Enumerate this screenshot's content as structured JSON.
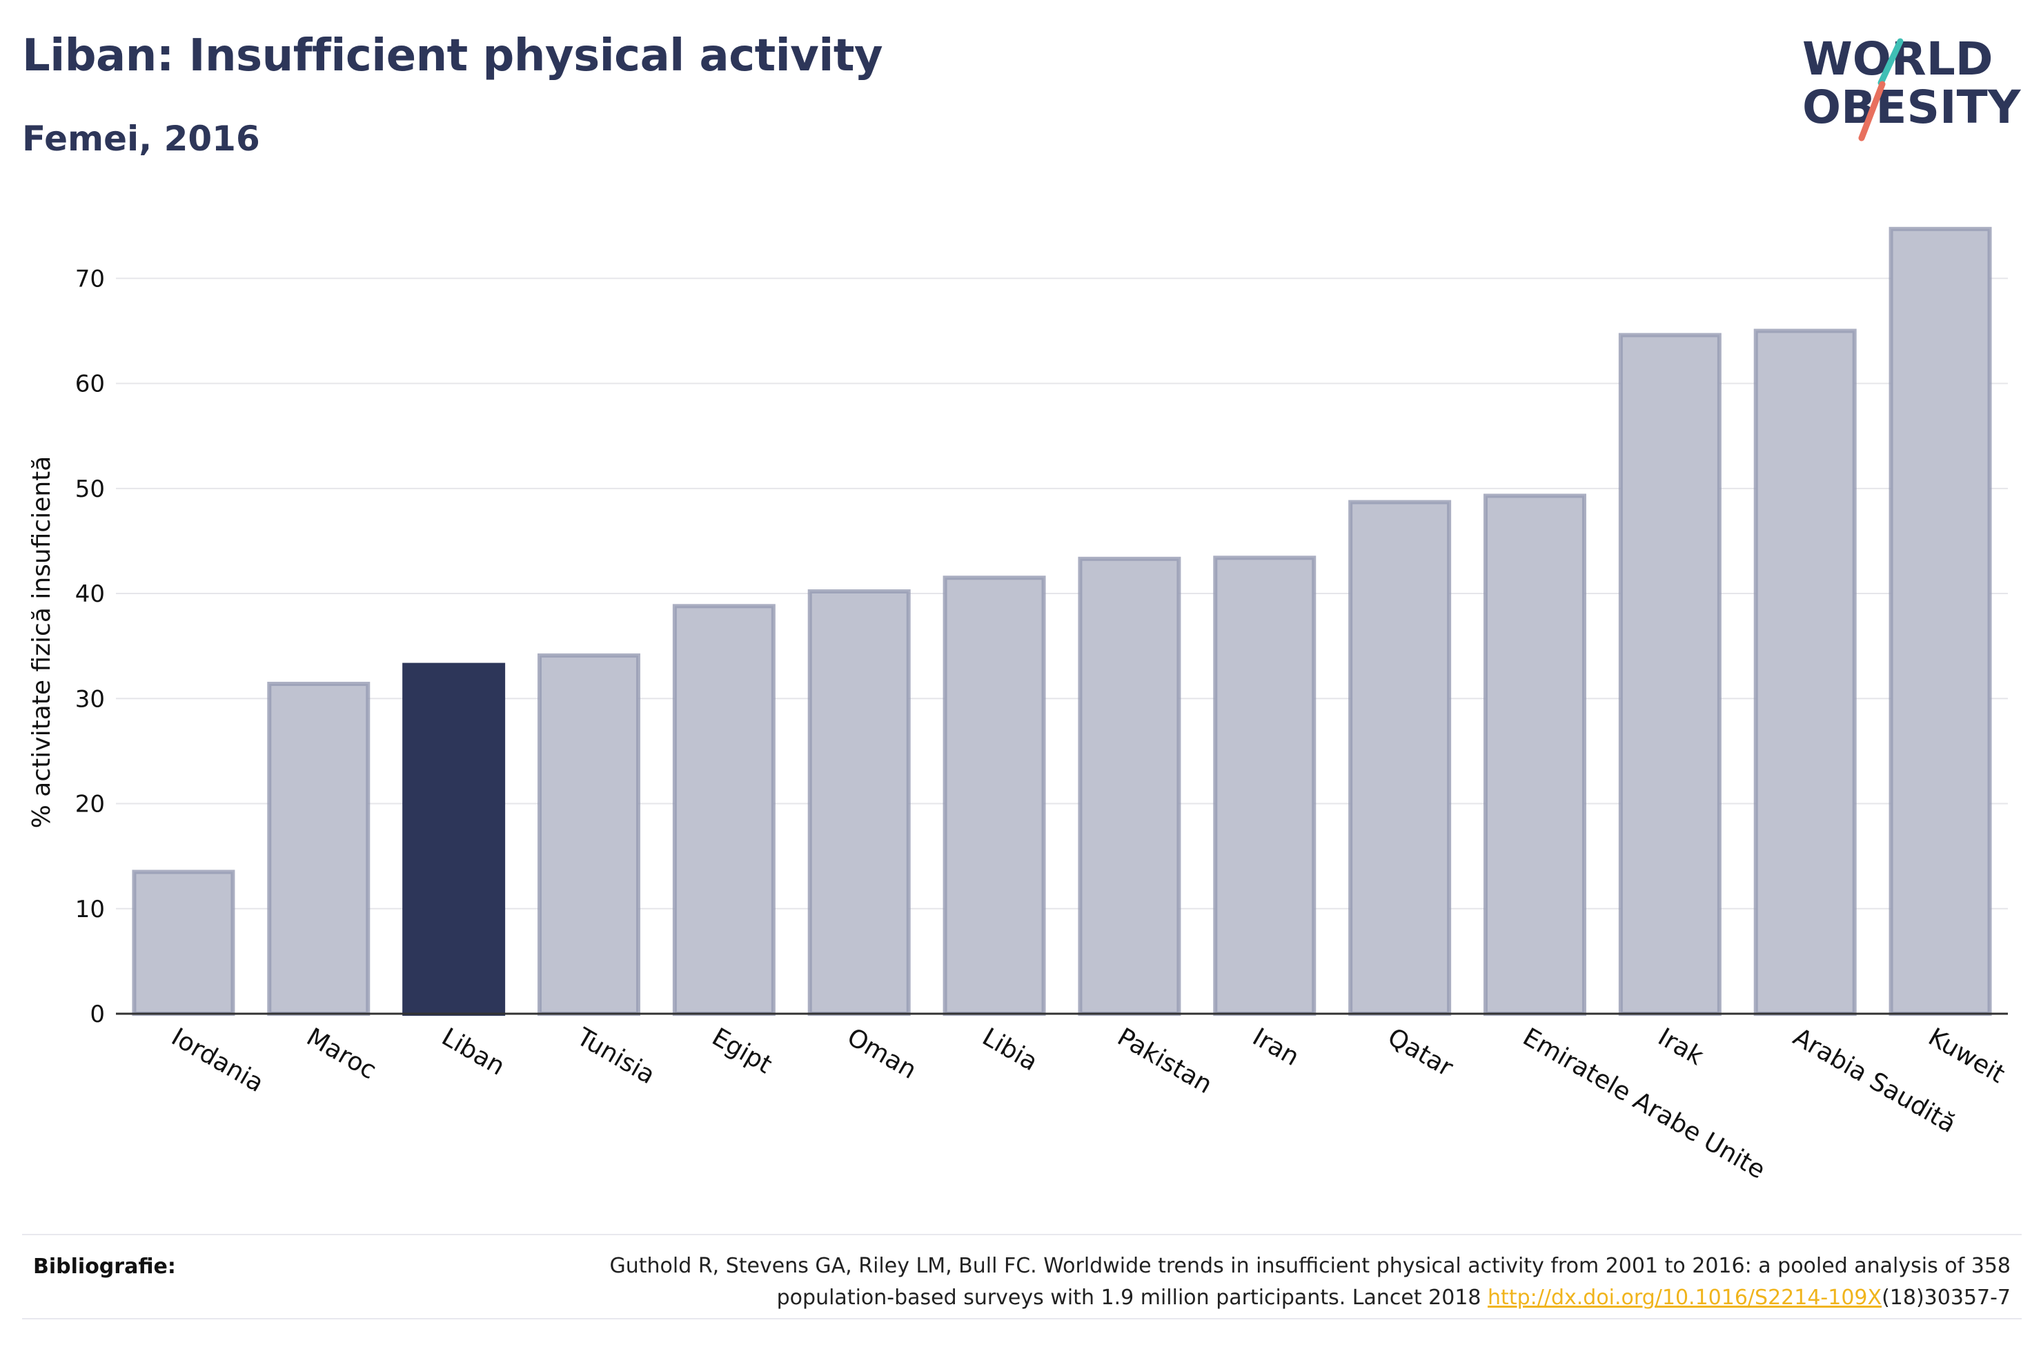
{
  "header": {
    "title": "Liban: Insufficient physical activity",
    "subtitle": "Femei, 2016"
  },
  "logo": {
    "line1": "WORLD",
    "line2": "OBESITY",
    "icon": "world-obesity-logo",
    "colors": {
      "text": "#2d3659",
      "slash_top": "#3fbfb5",
      "slash_bottom": "#e8705e"
    }
  },
  "colors": {
    "highlight": "#2d3659",
    "bar_fill": "#bfc2d0",
    "bar_stroke": "#969bb3",
    "grid": "#e6e6ea",
    "axis": "#333333"
  },
  "chart_data": {
    "type": "bar",
    "title": "Liban: Insufficient physical activity",
    "subtitle": "Femei, 2016",
    "xlabel": "",
    "ylabel": "% activitate fizică insuficientă",
    "ylim": [
      0,
      76
    ],
    "yticks": [
      0,
      10,
      20,
      30,
      40,
      50,
      60,
      70
    ],
    "grid": true,
    "highlight_category": "Liban",
    "categories": [
      "Iordania",
      "Maroc",
      "Liban",
      "Tunisia",
      "Egipt",
      "Oman",
      "Libia",
      "Pakistan",
      "Iran",
      "Qatar",
      "Emiratele Arabe Unite",
      "Irak",
      "Arabia Saudită",
      "Kuweit"
    ],
    "values": [
      13.5,
      31.4,
      33.2,
      34.1,
      38.8,
      40.2,
      41.5,
      43.3,
      43.4,
      48.7,
      49.3,
      64.6,
      65.0,
      74.7
    ]
  },
  "bibliography": {
    "label": "Bibliografie:",
    "text_line1": "Guthold R, Stevens GA, Riley LM, Bull FC. Worldwide trends in insufficient physical activity from 2001 to 2016: a pooled analysis of 358",
    "text_line2_prefix": "population-based surveys with 1.9 million participants. Lancet 2018 ",
    "link": "http://dx.doi.org/10.1016/S2214-109X",
    "text_line2_suffix": "(18)30357-7"
  }
}
